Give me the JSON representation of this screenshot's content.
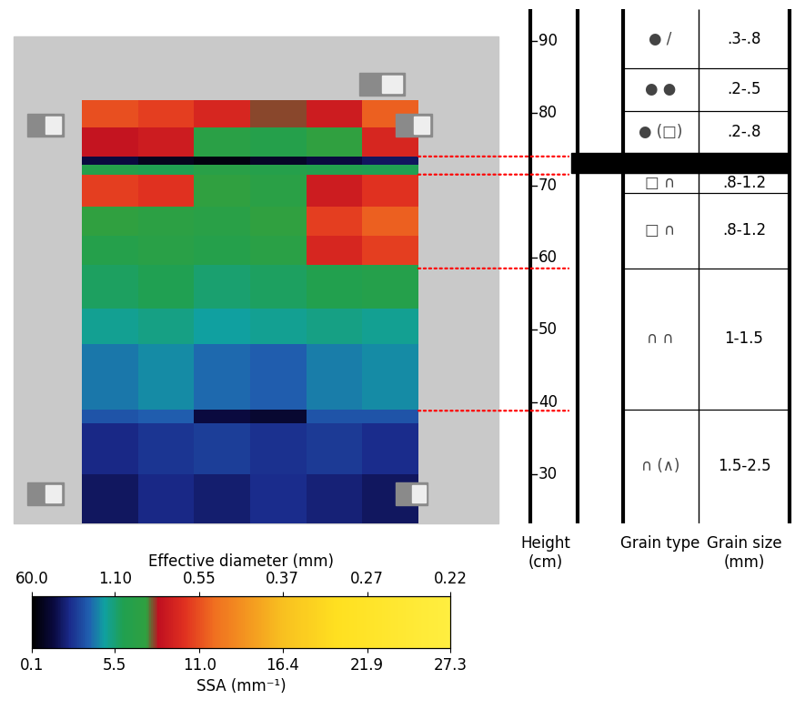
{
  "chart_data": {
    "type": "heatmap_profile",
    "image": {
      "height_edges": [
        23.2,
        30,
        37,
        39,
        48,
        53,
        59,
        63,
        67,
        71.5,
        72.8,
        74.0,
        78,
        81.8
      ],
      "ssa": [
        [
          2.0,
          2.5,
          2.2,
          2.6,
          2.3,
          2.0
        ],
        [
          2.5,
          2.8,
          3.0,
          2.7,
          2.9,
          2.6
        ],
        [
          3.5,
          3.8,
          1.5,
          1.2,
          3.6,
          3.5
        ],
        [
          4.2,
          4.5,
          4.0,
          3.8,
          4.3,
          4.5
        ],
        [
          5.0,
          5.2,
          4.8,
          5.0,
          5.3,
          5.0
        ],
        [
          5.8,
          6.0,
          5.6,
          5.8,
          6.2,
          6.5
        ],
        [
          6.5,
          6.8,
          6.5,
          7.0,
          9.5,
          10.5
        ],
        [
          7.5,
          7.2,
          6.8,
          7.5,
          10.5,
          11.5
        ],
        [
          10.5,
          10.0,
          7.5,
          7.0,
          9.0,
          10.0
        ],
        [
          6.5,
          6.0,
          6.8,
          6.5,
          6.2,
          6.0
        ],
        [
          1.5,
          0.8,
          0.5,
          1.0,
          1.5,
          2.0
        ],
        [
          8.5,
          9.0,
          7.0,
          6.5,
          7.5,
          9.5
        ],
        [
          11.0,
          10.5,
          9.5,
          8.0,
          9.0,
          11.5
        ]
      ]
    },
    "colorbar": {
      "range": [
        0.1,
        27.3
      ],
      "ticks": [
        0.1,
        5.5,
        11.0,
        16.4,
        21.9,
        27.3
      ],
      "label": "SSA (mm⁻¹)",
      "top_label": "Effective diameter (mm)",
      "top_ticks": [
        {
          "value": 0.1,
          "label": "60.0"
        },
        {
          "value": 5.5,
          "label": "1.10"
        },
        {
          "value": 11.0,
          "label": "0.55"
        },
        {
          "value": 16.4,
          "label": "0.37"
        },
        {
          "value": 21.9,
          "label": "0.27"
        },
        {
          "value": 27.3,
          "label": "0.22"
        }
      ]
    },
    "profile": {
      "ylim": [
        23.2,
        94.4
      ],
      "yticks": [
        30,
        40,
        50,
        60,
        70,
        80,
        90
      ],
      "headers": [
        "Height\n(cm)",
        "Grain type",
        "Grain size\n(mm)"
      ],
      "crust": [
        71.7,
        74.5
      ],
      "links": [
        74.0,
        71.5,
        58.5,
        38.8
      ],
      "layers": [
        {
          "top": 94.4,
          "bottom": 86.2,
          "grain_type": "● /",
          "grain_size": ".3-.8"
        },
        {
          "top": 86.2,
          "bottom": 80.3,
          "grain_type": "● ●",
          "grain_size": ".2-.5"
        },
        {
          "top": 80.3,
          "bottom": 74.5,
          "grain_type": "● (□)",
          "grain_size": ".2-.8"
        },
        {
          "top": 71.7,
          "bottom": 69.0,
          "grain_type": "□ ∩",
          "grain_size": ".8-1.2"
        },
        {
          "top": 69.0,
          "bottom": 58.5,
          "grain_type": "□ ∩",
          "grain_size": ".8-1.2"
        },
        {
          "top": 58.5,
          "bottom": 39.0,
          "grain_type": "∩ ∩",
          "grain_size": "1-1.5"
        },
        {
          "top": 39.0,
          "bottom": 23.2,
          "grain_type": "∩ (∧)",
          "grain_size": "1.5-2.5"
        }
      ]
    }
  }
}
